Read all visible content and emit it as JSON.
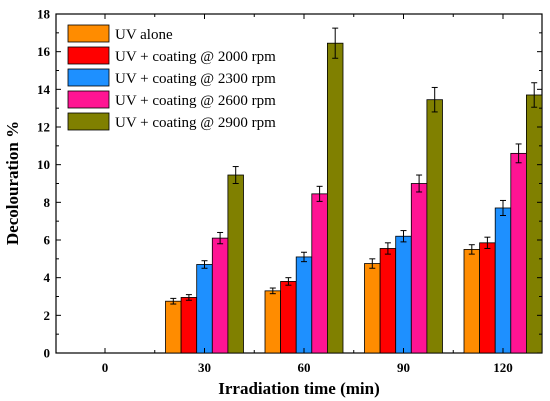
{
  "chart_data": {
    "type": "bar",
    "xlabel": "Irradiation time (min)",
    "ylabel": "Decolouration %",
    "categories": [
      "0",
      "30",
      "60",
      "90",
      "120"
    ],
    "ylim": [
      0,
      18
    ],
    "yticks": [
      0,
      2,
      4,
      6,
      8,
      10,
      12,
      14,
      16,
      18
    ],
    "grid": false,
    "legend_position": "top-left",
    "series": [
      {
        "name": "UV alone",
        "color": "#ff8c00",
        "values": [
          0,
          2.75,
          3.3,
          4.75,
          5.5
        ],
        "errors": [
          0,
          0.15,
          0.15,
          0.25,
          0.25
        ]
      },
      {
        "name": "UV + coating @ 2000 rpm",
        "color": "#ff0000",
        "values": [
          0,
          2.95,
          3.8,
          5.55,
          5.85
        ],
        "errors": [
          0,
          0.15,
          0.2,
          0.3,
          0.3
        ]
      },
      {
        "name": "UV + coating @ 2300 rpm",
        "color": "#1e90ff",
        "values": [
          0,
          4.7,
          5.1,
          6.2,
          7.7
        ],
        "errors": [
          0,
          0.2,
          0.25,
          0.3,
          0.4
        ]
      },
      {
        "name": "UV + coating @ 2600 rpm",
        "color": "#ff1493",
        "values": [
          0,
          6.1,
          8.45,
          9.0,
          10.6
        ],
        "errors": [
          0,
          0.3,
          0.4,
          0.45,
          0.5
        ]
      },
      {
        "name": "UV + coating @ 2900 rpm",
        "color": "#808000",
        "values": [
          0,
          9.45,
          16.45,
          13.45,
          13.7
        ],
        "errors": [
          0,
          0.45,
          0.8,
          0.65,
          0.65
        ]
      }
    ]
  }
}
